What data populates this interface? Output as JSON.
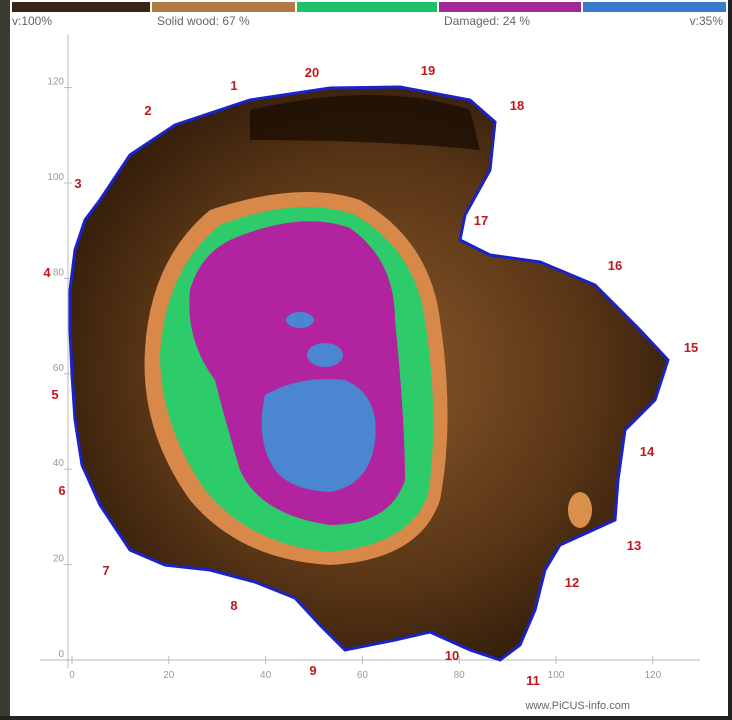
{
  "legend": {
    "left": "v:100%",
    "solid": "Solid wood: 67 %",
    "damaged": "Damaged: 24 %",
    "right": "v:35%"
  },
  "y_axis": {
    "ticks": [
      0,
      20,
      40,
      60,
      80,
      100,
      120
    ]
  },
  "x_axis": {
    "ticks": [
      0,
      20,
      40,
      60,
      80,
      100,
      120
    ]
  },
  "sensors": [
    "1",
    "2",
    "3",
    "4",
    "5",
    "6",
    "7",
    "8",
    "9",
    "10",
    "11",
    "12",
    "13",
    "14",
    "15",
    "16",
    "17",
    "18",
    "19",
    "20"
  ],
  "footer": "www.PiCUS-info.com"
}
